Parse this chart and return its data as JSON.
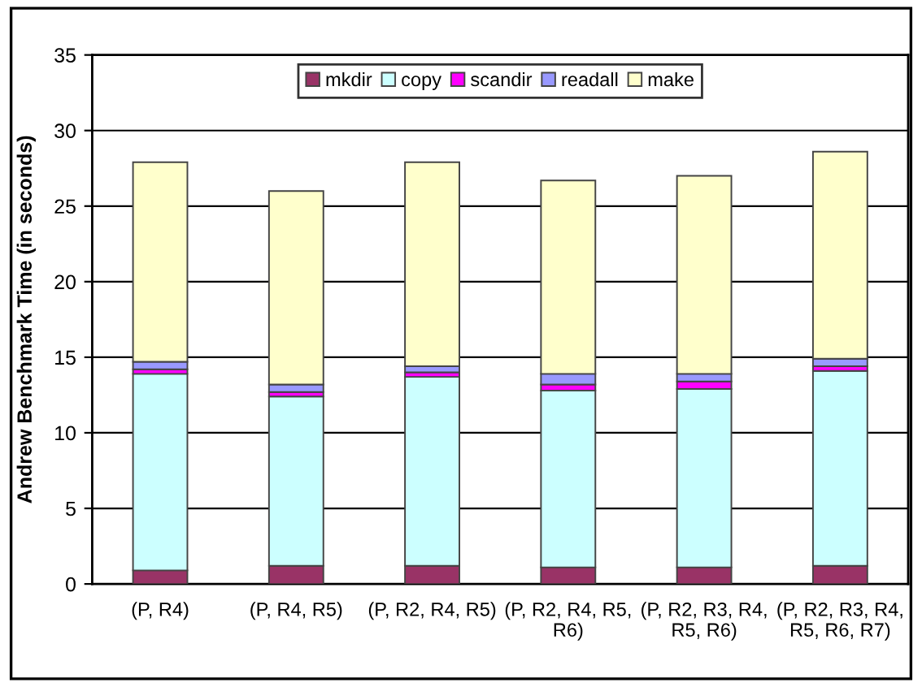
{
  "chart_data": {
    "type": "bar",
    "stacked": true,
    "ylabel": "Andrew Benchmark Time (in seconds)",
    "categories": [
      "(P, R4)",
      "(P, R4, R5)",
      "(P, R2, R4, R5)",
      "(P, R2, R4, R5,\nR6)",
      "(P, R2, R3, R4,\nR5, R6)",
      "(P, R2, R3, R4,\nR5, R6, R7)"
    ],
    "series": [
      {
        "name": "mkdir",
        "color": "#993366",
        "values": [
          0.9,
          1.2,
          1.2,
          1.1,
          1.1,
          1.2
        ]
      },
      {
        "name": "copy",
        "color": "#ccffff",
        "values": [
          13.0,
          11.2,
          12.5,
          11.7,
          11.8,
          12.9
        ]
      },
      {
        "name": "scandir",
        "color": "#ff00ff",
        "values": [
          0.3,
          0.3,
          0.3,
          0.4,
          0.5,
          0.3
        ]
      },
      {
        "name": "readall",
        "color": "#9999ff",
        "values": [
          0.5,
          0.5,
          0.4,
          0.7,
          0.5,
          0.5
        ]
      },
      {
        "name": "make",
        "color": "#ffffcc",
        "values": [
          13.2,
          12.8,
          13.5,
          12.8,
          13.1,
          13.7
        ]
      }
    ],
    "ylim": [
      0,
      35
    ],
    "yticks": [
      0,
      5,
      10,
      15,
      20,
      25,
      30,
      35
    ],
    "grid": "y",
    "legend": "top"
  }
}
